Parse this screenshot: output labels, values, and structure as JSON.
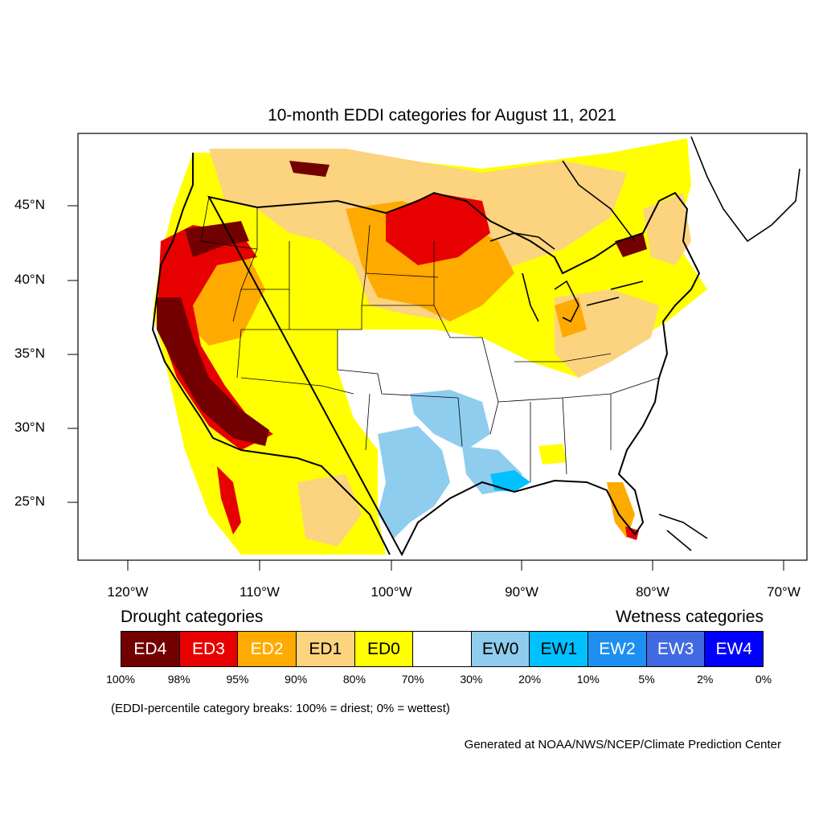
{
  "title": "10-month EDDI categories for August 11, 2021",
  "lat_labels": [
    "45°N",
    "40°N",
    "35°N",
    "30°N",
    "25°N"
  ],
  "lon_labels": [
    "120°W",
    "110°W",
    "100°W",
    "90°W",
    "80°W",
    "70°W"
  ],
  "legend": {
    "drought_heading": "Drought categories",
    "wetness_heading": "Wetness categories",
    "categories": [
      {
        "label": "ED4",
        "color": "#730000",
        "text_color": "#ffffff"
      },
      {
        "label": "ED3",
        "color": "#e60000",
        "text_color": "#ffffff"
      },
      {
        "label": "ED2",
        "color": "#ffaa00",
        "text_color": "#ffffff"
      },
      {
        "label": "ED1",
        "color": "#fcd37f",
        "text_color": "#000000"
      },
      {
        "label": "ED0",
        "color": "#ffff00",
        "text_color": "#000000"
      },
      {
        "label": "",
        "color": "#ffffff",
        "text_color": "#000000"
      },
      {
        "label": "EW0",
        "color": "#8fcdef",
        "text_color": "#000000"
      },
      {
        "label": "EW1",
        "color": "#00c0ff",
        "text_color": "#000000"
      },
      {
        "label": "EW2",
        "color": "#1e8ff0",
        "text_color": "#ffffff"
      },
      {
        "label": "EW3",
        "color": "#4169e1",
        "text_color": "#ffffff"
      },
      {
        "label": "EW4",
        "color": "#0000ff",
        "text_color": "#ffffff"
      }
    ],
    "percent_breaks": [
      "100%",
      "98%",
      "95%",
      "90%",
      "80%",
      "70%",
      "30%",
      "20%",
      "10%",
      "5%",
      "2%",
      "0%"
    ]
  },
  "note": "(EDDI-percentile category breaks: 100% = driest; 0% = wettest)",
  "credit": "Generated at NOAA/NWS/NCEP/Climate Prediction Center"
}
